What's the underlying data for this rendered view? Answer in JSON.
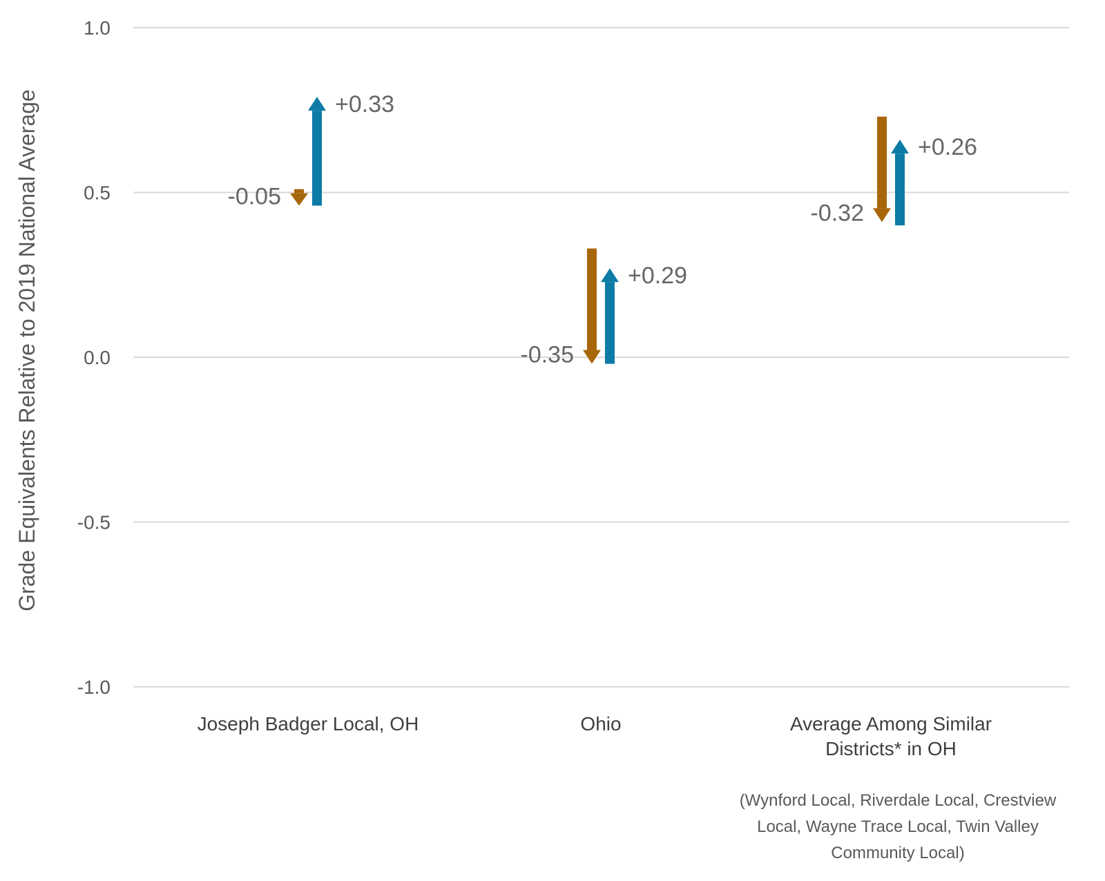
{
  "chart_data": {
    "type": "arrow",
    "ylabel": "Grade Equivalents Relative to 2019 National Average",
    "ylim": [
      -1.0,
      1.0
    ],
    "yticks": [
      "1.0",
      "0.5",
      "0.0",
      "-0.5",
      "-1.0"
    ],
    "ytick_values": [
      1.0,
      0.5,
      0.0,
      -0.5,
      -1.0
    ],
    "grid": true,
    "categories": [
      {
        "lines": [
          "Joseph Badger Local, OH"
        ]
      },
      {
        "lines": [
          "Ohio"
        ]
      },
      {
        "lines": [
          "Average Among Similar",
          "Districts* in OH"
        ]
      }
    ],
    "note": [
      "(Wynford Local, Riverdale Local, Crestview",
      "Local, Wayne Trace Local, Twin Valley",
      "Community Local)"
    ],
    "series": [
      {
        "color": "#A8660A",
        "start": [
          0.51,
          0.33,
          0.73
        ],
        "end": [
          0.46,
          -0.02,
          0.41
        ],
        "labels": [
          "-0.05",
          "-0.35",
          "-0.32"
        ]
      },
      {
        "color": "#0C7BA6",
        "start": [
          0.46,
          -0.02,
          0.4
        ],
        "end": [
          0.79,
          0.27,
          0.66
        ],
        "labels": [
          "+0.33",
          "+0.29",
          "+0.26"
        ]
      }
    ]
  }
}
